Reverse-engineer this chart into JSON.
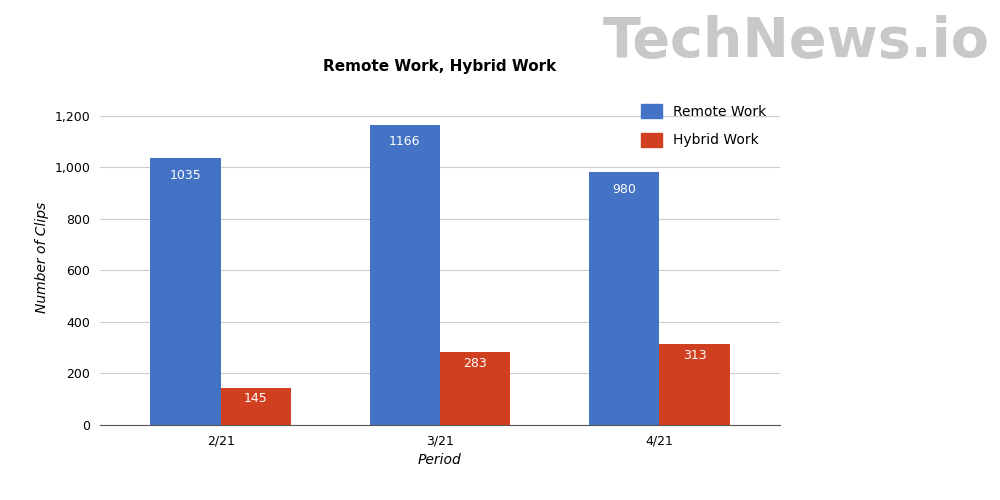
{
  "title": "Remote Work, Hybrid Work",
  "xlabel": "Period",
  "ylabel": "Number of Clips",
  "periods": [
    "2/21",
    "3/21",
    "4/21"
  ],
  "remote_work": [
    1035,
    1166,
    980
  ],
  "hybrid_work": [
    145,
    283,
    313
  ],
  "remote_color": "#4472C4",
  "hybrid_color": "#D04020",
  "bar_width": 0.32,
  "ylim": [
    0,
    1300
  ],
  "yticks": [
    0,
    200,
    400,
    600,
    800,
    1000,
    1200
  ],
  "ytick_labels": [
    "0",
    "200",
    "400",
    "600",
    "800",
    "1,000",
    "1,200"
  ],
  "legend_labels": [
    "Remote Work",
    "Hybrid Work"
  ],
  "title_fontsize": 11,
  "axis_label_fontsize": 10,
  "tick_fontsize": 9,
  "label_fontsize": 9,
  "background_color": "#ffffff",
  "grid_color": "#cccccc",
  "watermark_text": "TechNews.io",
  "watermark_color": "#c8c8c8",
  "watermark_fontsize": 40
}
